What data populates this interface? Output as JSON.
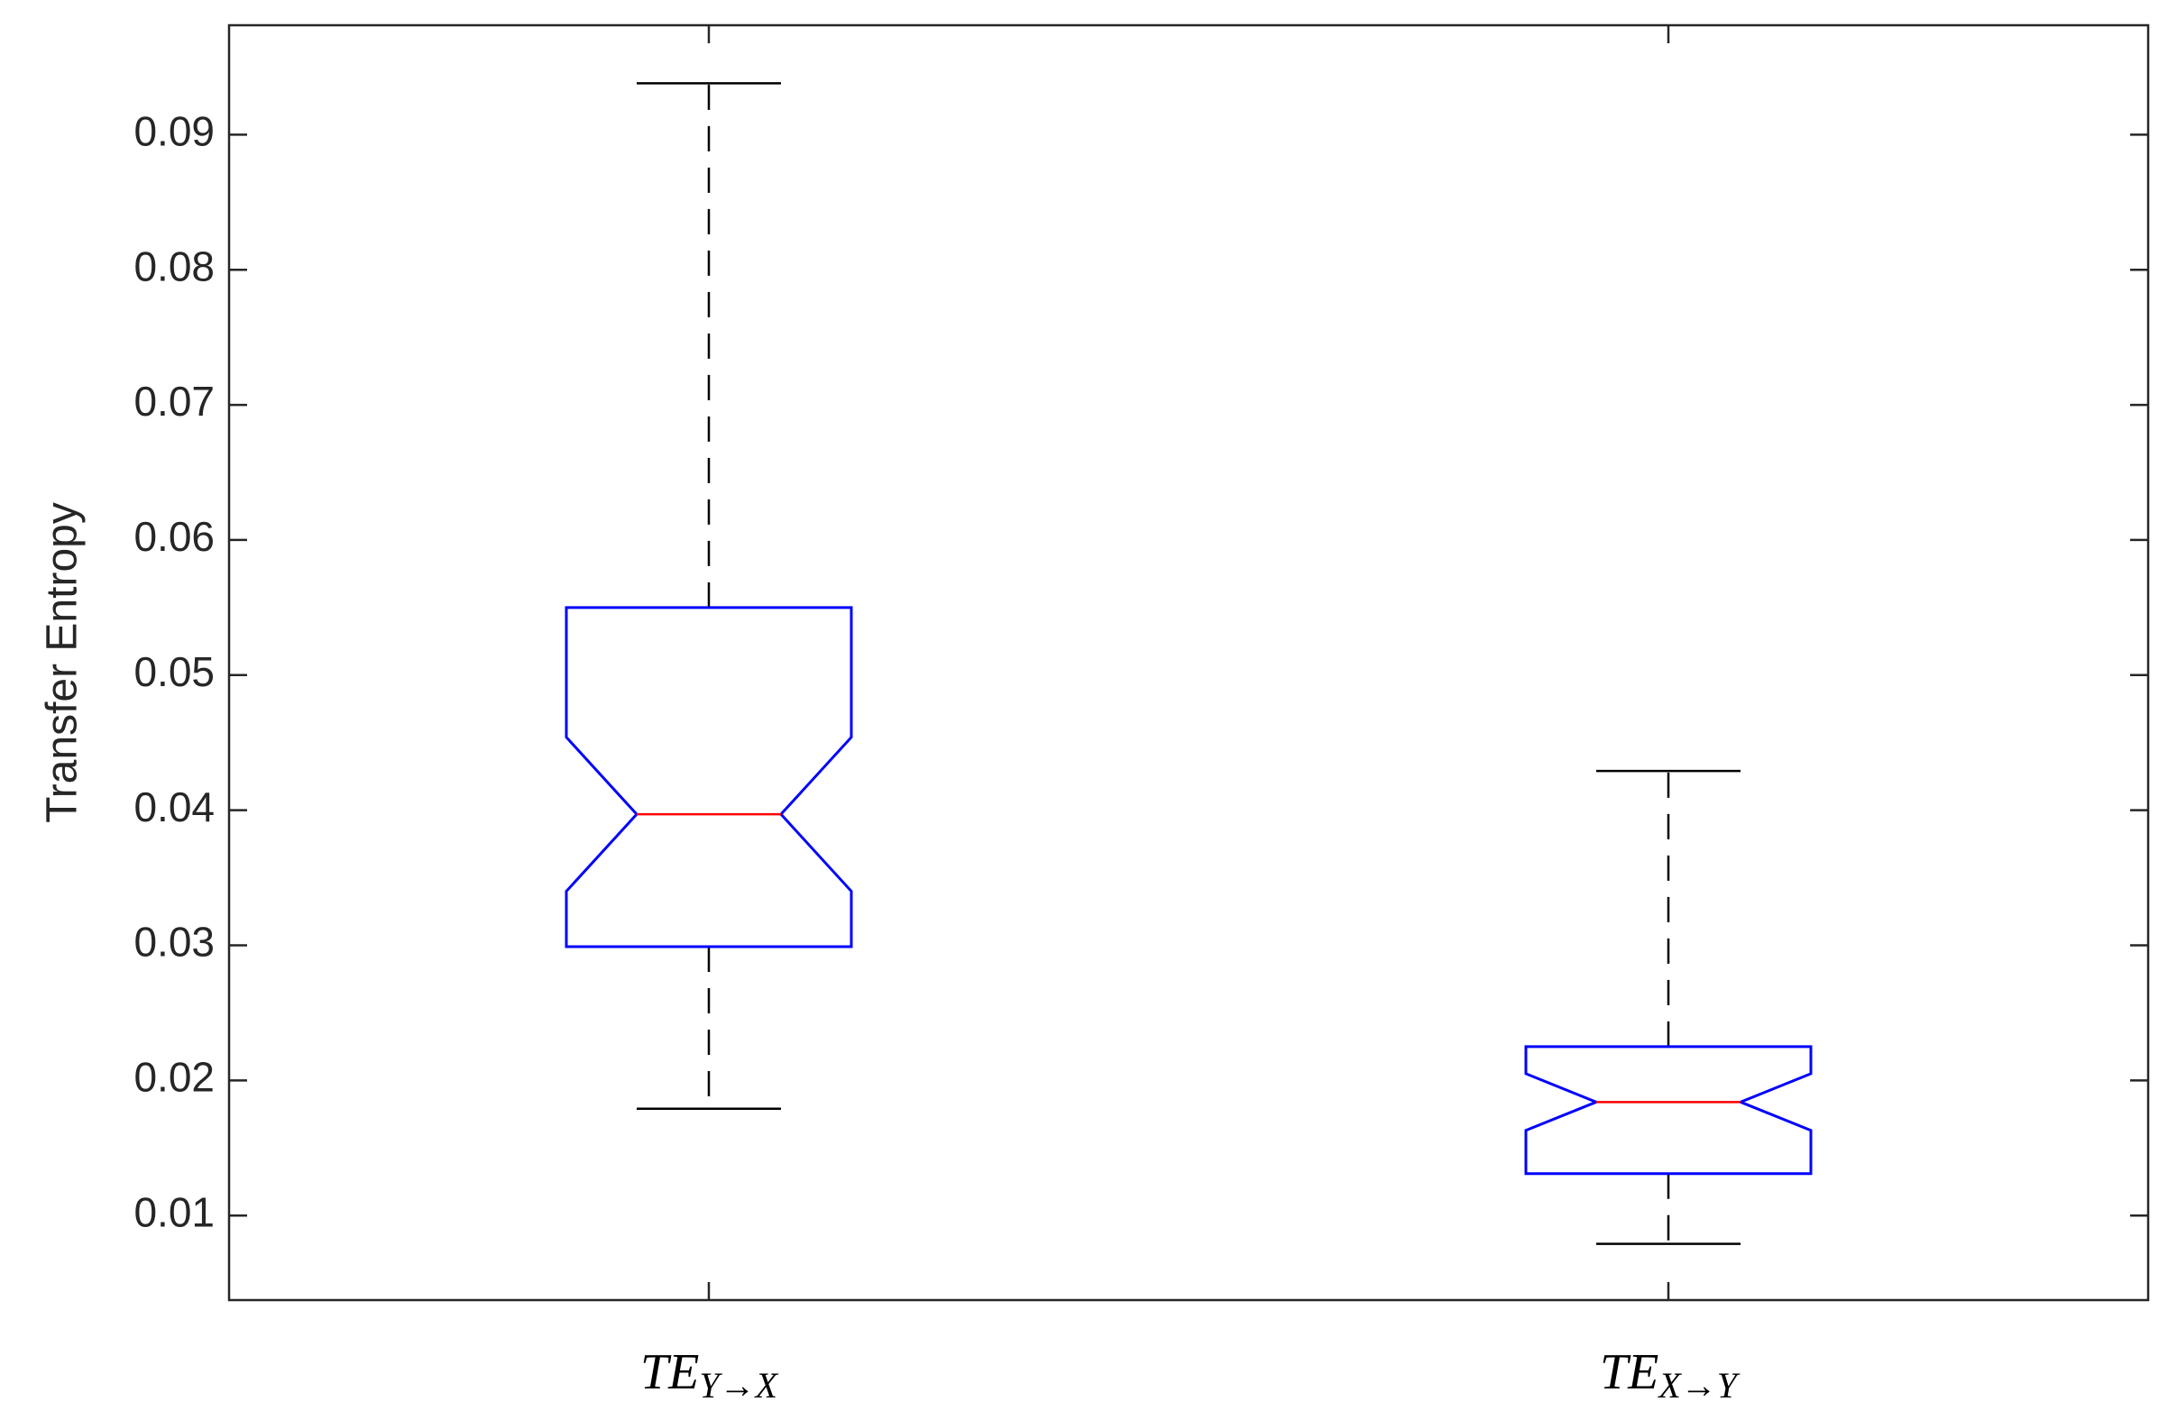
{
  "chart_data": {
    "type": "boxplot",
    "y_label": "Transfer Entropy",
    "categories": [
      {
        "main": "TE",
        "sub": "Y→X"
      },
      {
        "main": "TE",
        "sub": "X→Y"
      }
    ],
    "boxes": [
      {
        "whisker_low": 0.0179,
        "q1": 0.0299,
        "notch_low": 0.034,
        "median": 0.0397,
        "notch_high": 0.0454,
        "q3": 0.055,
        "whisker_high": 0.0938
      },
      {
        "whisker_low": 0.0079,
        "q1": 0.0131,
        "notch_low": 0.0163,
        "median": 0.0184,
        "notch_high": 0.0205,
        "q3": 0.0225,
        "whisker_high": 0.0429
      }
    ],
    "box_color": "#0000ff",
    "median_color": "#ff0000",
    "whisker_color": "#000000",
    "ylim": [
      0.00374,
      0.0981
    ],
    "yticks": [
      0.01,
      0.02,
      0.03,
      0.04,
      0.05,
      0.06,
      0.07,
      0.08,
      0.09
    ],
    "grid": false
  }
}
